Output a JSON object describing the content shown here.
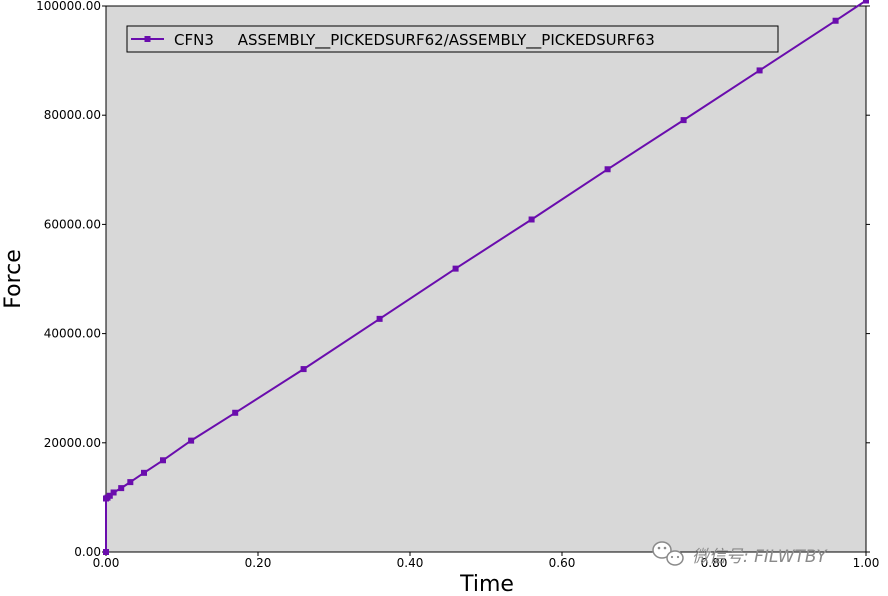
{
  "chart_data": {
    "type": "line",
    "xlabel": "Time",
    "ylabel": "Force",
    "xlim": [
      0,
      1.0
    ],
    "ylim": [
      0,
      100000
    ],
    "xticks": [
      "0.00",
      "0.20",
      "0.40",
      "0.60",
      "0.80",
      "1.00"
    ],
    "yticks": [
      "0.00",
      "20000.00",
      "40000.00",
      "60000.00",
      "80000.00",
      "100000.00"
    ],
    "legend_position": "top-left",
    "series": [
      {
        "name": "CFN3     ASSEMBLY__PICKEDSURF62/ASSEMBLY__PICKEDSURF63",
        "color": "#6a0dad",
        "marker": "square",
        "x": [
          0.0,
          0.0,
          0.002,
          0.005,
          0.01,
          0.02,
          0.032,
          0.05,
          0.075,
          0.112,
          0.17,
          0.26,
          0.36,
          0.46,
          0.56,
          0.66,
          0.76,
          0.86,
          0.96,
          1.0
        ],
        "y": [
          0,
          9800,
          9950,
          10300,
          10900,
          11700,
          12800,
          14500,
          16800,
          20400,
          25500,
          33500,
          42700,
          51900,
          60900,
          70100,
          79100,
          88200,
          97300,
          101000
        ]
      }
    ]
  },
  "watermark": {
    "icon": "wechat-icon",
    "text": "微信号: FILWTBY"
  }
}
